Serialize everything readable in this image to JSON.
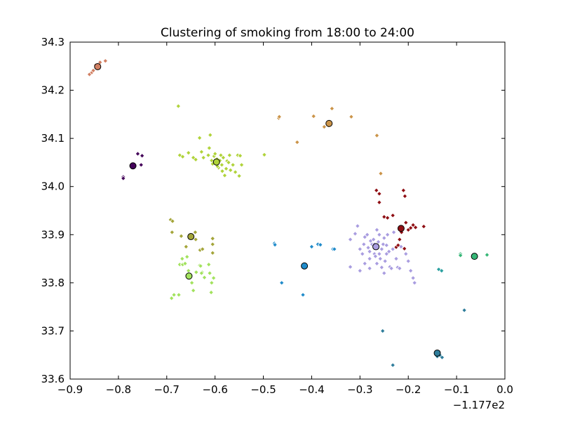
{
  "chart_data": {
    "type": "scatter",
    "title": "Clustering of smoking from 18:00 to 24:00",
    "xlabel": "",
    "ylabel": "",
    "offset_label": "−1.177e2",
    "xlim": [
      -0.9,
      0.0
    ],
    "ylim": [
      33.6,
      34.3
    ],
    "xticks": [
      -0.9,
      -0.8,
      -0.7,
      -0.6,
      -0.5,
      -0.4,
      -0.3,
      -0.2,
      -0.1,
      0.0
    ],
    "xtick_labels": [
      "−0.9",
      "−0.8",
      "−0.7",
      "−0.6",
      "−0.5",
      "−0.4",
      "−0.3",
      "−0.2",
      "−0.1",
      "0.0"
    ],
    "yticks": [
      33.6,
      33.7,
      33.8,
      33.9,
      34.0,
      34.1,
      34.2,
      34.3
    ],
    "ytick_labels": [
      "33.6",
      "33.7",
      "33.8",
      "33.9",
      "34.0",
      "34.1",
      "34.2",
      "34.3"
    ],
    "grid": false,
    "legend": "none",
    "clusters": [
      {
        "color": "#d17f62",
        "centroid": [
          -0.843,
          34.249
        ],
        "points": [
          [
            -0.86,
            34.233
          ],
          [
            -0.855,
            34.237
          ],
          [
            -0.847,
            34.252
          ],
          [
            -0.838,
            34.258
          ],
          [
            -0.827,
            34.261
          ],
          [
            -0.852,
            34.241
          ]
        ]
      },
      {
        "color": "#cb9449",
        "centroid": [
          -0.364,
          34.131
        ],
        "points": [
          [
            -0.468,
            34.142
          ],
          [
            -0.467,
            34.145
          ],
          [
            -0.43,
            34.092
          ],
          [
            -0.396,
            34.146
          ],
          [
            -0.374,
            34.124
          ],
          [
            -0.365,
            34.127
          ],
          [
            -0.358,
            34.162
          ],
          [
            -0.318,
            34.145
          ],
          [
            -0.265,
            34.106
          ],
          [
            -0.257,
            34.027
          ]
        ]
      },
      {
        "color": "#44045a",
        "centroid": [
          -0.77,
          34.043
        ],
        "points": [
          [
            -0.79,
            34.02
          ],
          [
            -0.79,
            34.017
          ],
          [
            -0.76,
            34.068
          ],
          [
            -0.751,
            34.064
          ],
          [
            -0.753,
            34.045
          ]
        ]
      },
      {
        "color": "#b0d33a",
        "centroid": [
          -0.597,
          34.051
        ],
        "points": [
          [
            -0.676,
            34.167
          ],
          [
            -0.673,
            34.065
          ],
          [
            -0.667,
            34.062
          ],
          [
            -0.655,
            34.07
          ],
          [
            -0.645,
            34.06
          ],
          [
            -0.64,
            34.056
          ],
          [
            -0.632,
            34.101
          ],
          [
            -0.628,
            34.072
          ],
          [
            -0.624,
            34.06
          ],
          [
            -0.614,
            34.065
          ],
          [
            -0.612,
            34.08
          ],
          [
            -0.61,
            34.107
          ],
          [
            -0.607,
            34.054
          ],
          [
            -0.605,
            34.047
          ],
          [
            -0.602,
            34.063
          ],
          [
            -0.6,
            34.068
          ],
          [
            -0.596,
            34.057
          ],
          [
            -0.593,
            34.039
          ],
          [
            -0.59,
            34.054
          ],
          [
            -0.588,
            34.065
          ],
          [
            -0.586,
            34.045
          ],
          [
            -0.583,
            34.06
          ],
          [
            -0.58,
            34.023
          ],
          [
            -0.577,
            34.037
          ],
          [
            -0.575,
            34.053
          ],
          [
            -0.572,
            34.05
          ],
          [
            -0.57,
            34.065
          ],
          [
            -0.568,
            34.034
          ],
          [
            -0.563,
            34.045
          ],
          [
            -0.558,
            34.03
          ],
          [
            -0.553,
            34.065
          ],
          [
            -0.548,
            34.064
          ],
          [
            -0.545,
            34.045
          ],
          [
            -0.55,
            34.022
          ],
          [
            -0.498,
            34.066
          ],
          [
            -0.585,
            34.032
          ],
          [
            -0.595,
            34.042
          ]
        ]
      },
      {
        "color": "#a4a53a",
        "centroid": [
          -0.65,
          33.896
        ],
        "points": [
          [
            -0.692,
            33.931
          ],
          [
            -0.688,
            33.928
          ],
          [
            -0.689,
            33.905
          ],
          [
            -0.67,
            33.897
          ],
          [
            -0.66,
            33.875
          ],
          [
            -0.641,
            33.905
          ],
          [
            -0.631,
            33.868
          ],
          [
            -0.626,
            33.87
          ],
          [
            -0.605,
            33.892
          ],
          [
            -0.605,
            33.88
          ],
          [
            -0.605,
            33.862
          ],
          [
            -0.64,
            33.89
          ]
        ]
      },
      {
        "color": "#a2e25d",
        "centroid": [
          -0.654,
          33.814
        ],
        "points": [
          [
            -0.69,
            33.768
          ],
          [
            -0.685,
            33.775
          ],
          [
            -0.675,
            33.775
          ],
          [
            -0.673,
            33.838
          ],
          [
            -0.668,
            33.85
          ],
          [
            -0.667,
            33.838
          ],
          [
            -0.662,
            33.84
          ],
          [
            -0.658,
            33.854
          ],
          [
            -0.655,
            33.825
          ],
          [
            -0.648,
            33.8
          ],
          [
            -0.645,
            33.784
          ],
          [
            -0.639,
            33.822
          ],
          [
            -0.632,
            33.836
          ],
          [
            -0.63,
            33.835
          ],
          [
            -0.627,
            33.822
          ],
          [
            -0.622,
            33.811
          ],
          [
            -0.613,
            33.838
          ],
          [
            -0.611,
            33.82
          ],
          [
            -0.607,
            33.8
          ],
          [
            -0.603,
            33.81
          ],
          [
            -0.608,
            33.78
          ],
          [
            -0.628,
            33.82
          ]
        ]
      },
      {
        "color": "#208bca",
        "centroid": [
          -0.415,
          33.835
        ],
        "points": [
          [
            -0.477,
            33.882
          ],
          [
            -0.476,
            33.879
          ],
          [
            -0.462,
            33.8
          ],
          [
            -0.418,
            33.775
          ],
          [
            -0.4,
            33.875
          ],
          [
            -0.387,
            33.88
          ],
          [
            -0.382,
            33.879
          ],
          [
            -0.356,
            33.87
          ],
          [
            -0.353,
            33.87
          ]
        ]
      },
      {
        "color": "#8f0f14",
        "centroid": [
          -0.215,
          33.913
        ],
        "points": [
          [
            -0.266,
            33.992
          ],
          [
            -0.26,
            33.985
          ],
          [
            -0.26,
            33.967
          ],
          [
            -0.25,
            33.937
          ],
          [
            -0.243,
            33.935
          ],
          [
            -0.232,
            33.94
          ],
          [
            -0.225,
            33.874
          ],
          [
            -0.221,
            33.878
          ],
          [
            -0.214,
            33.905
          ],
          [
            -0.21,
            33.992
          ],
          [
            -0.207,
            33.98
          ],
          [
            -0.205,
            33.925
          ],
          [
            -0.2,
            33.91
          ],
          [
            -0.195,
            33.914
          ],
          [
            -0.19,
            33.92
          ],
          [
            -0.185,
            33.915
          ],
          [
            -0.168,
            33.917
          ],
          [
            -0.208,
            33.871
          ],
          [
            -0.218,
            33.89
          ]
        ]
      },
      {
        "color": "#a99de0",
        "centroid": [
          -0.267,
          33.875
        ],
        "points": [
          [
            -0.32,
            33.89
          ],
          [
            -0.31,
            33.902
          ],
          [
            -0.305,
            33.918
          ],
          [
            -0.3,
            33.87
          ],
          [
            -0.295,
            33.86
          ],
          [
            -0.292,
            33.88
          ],
          [
            -0.29,
            33.895
          ],
          [
            -0.285,
            33.9
          ],
          [
            -0.283,
            33.873
          ],
          [
            -0.28,
            33.865
          ],
          [
            -0.278,
            33.887
          ],
          [
            -0.275,
            33.88
          ],
          [
            -0.272,
            33.89
          ],
          [
            -0.27,
            33.86
          ],
          [
            -0.268,
            33.855
          ],
          [
            -0.265,
            33.91
          ],
          [
            -0.262,
            33.885
          ],
          [
            -0.26,
            33.9
          ],
          [
            -0.258,
            33.85
          ],
          [
            -0.255,
            33.87
          ],
          [
            -0.252,
            33.88
          ],
          [
            -0.25,
            33.893
          ],
          [
            -0.248,
            33.845
          ],
          [
            -0.245,
            33.878
          ],
          [
            -0.243,
            33.9
          ],
          [
            -0.24,
            33.865
          ],
          [
            -0.238,
            33.833
          ],
          [
            -0.235,
            33.83
          ],
          [
            -0.232,
            33.87
          ],
          [
            -0.23,
            33.905
          ],
          [
            -0.225,
            33.85
          ],
          [
            -0.222,
            33.832
          ],
          [
            -0.218,
            33.83
          ],
          [
            -0.215,
            33.875
          ],
          [
            -0.205,
            33.86
          ],
          [
            -0.2,
            33.845
          ],
          [
            -0.195,
            33.825
          ],
          [
            -0.19,
            33.81
          ],
          [
            -0.187,
            33.8
          ],
          [
            -0.32,
            33.833
          ],
          [
            -0.3,
            33.825
          ],
          [
            -0.29,
            33.84
          ],
          [
            -0.28,
            33.85
          ],
          [
            -0.265,
            33.84
          ],
          [
            -0.255,
            33.832
          ],
          [
            -0.245,
            33.86
          ],
          [
            -0.25,
            33.82
          ],
          [
            -0.27,
            33.88
          ],
          [
            -0.26,
            33.86
          ],
          [
            -0.28,
            33.83
          ]
        ]
      },
      {
        "color": "#35b676",
        "centroid": [
          -0.063,
          33.855
        ],
        "points": [
          [
            -0.092,
            33.86
          ],
          [
            -0.092,
            33.857
          ],
          [
            -0.038,
            33.858
          ],
          [
            -0.037,
            33.858
          ]
        ]
      },
      {
        "color": "#2aa0a0",
        "centroid": null,
        "points": [
          [
            -0.137,
            33.828
          ],
          [
            -0.131,
            33.825
          ]
        ]
      },
      {
        "color": "#2f7d9b",
        "centroid": [
          -0.14,
          33.654
        ],
        "points": [
          [
            -0.253,
            33.7
          ],
          [
            -0.232,
            33.629
          ],
          [
            -0.14,
            33.647
          ],
          [
            -0.134,
            33.649
          ],
          [
            -0.13,
            33.645
          ],
          [
            -0.084,
            33.743
          ]
        ]
      }
    ]
  }
}
